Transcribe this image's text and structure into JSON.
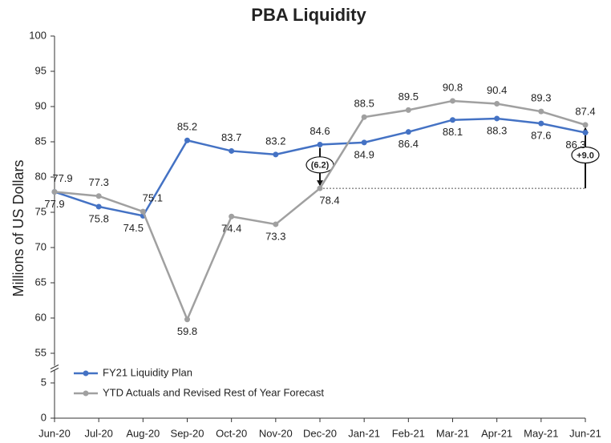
{
  "chart_data": {
    "type": "line",
    "title": "PBA Liquidity",
    "ylabel": "Millions of US Dollars",
    "categories": [
      "Jun-20",
      "Jul-20",
      "Aug-20",
      "Sep-20",
      "Oct-20",
      "Nov-20",
      "Dec-20",
      "Jan-21",
      "Feb-21",
      "Mar-21",
      "Apr-21",
      "May-21",
      "Jun-21"
    ],
    "series": [
      {
        "name": "FY21 Liquidity Plan",
        "color": "#4472c4",
        "values": [
          77.9,
          75.8,
          74.5,
          85.2,
          83.7,
          83.2,
          84.6,
          84.9,
          86.4,
          88.1,
          88.3,
          87.6,
          86.3
        ]
      },
      {
        "name": "YTD Actuals and Revised Rest of Year Forecast",
        "color": "#a0a0a0",
        "values": [
          77.9,
          77.3,
          75.1,
          59.8,
          74.4,
          73.3,
          78.4,
          88.5,
          89.5,
          90.8,
          90.4,
          89.3,
          87.4
        ]
      }
    ],
    "ylim": [
      0,
      100
    ],
    "yticks": [
      0,
      5,
      55,
      60,
      65,
      70,
      75,
      80,
      85,
      90,
      95,
      100
    ],
    "y_break": [
      5,
      55
    ],
    "annotations": [
      "(6.2)",
      "+9.0"
    ],
    "legend": "lower left"
  }
}
